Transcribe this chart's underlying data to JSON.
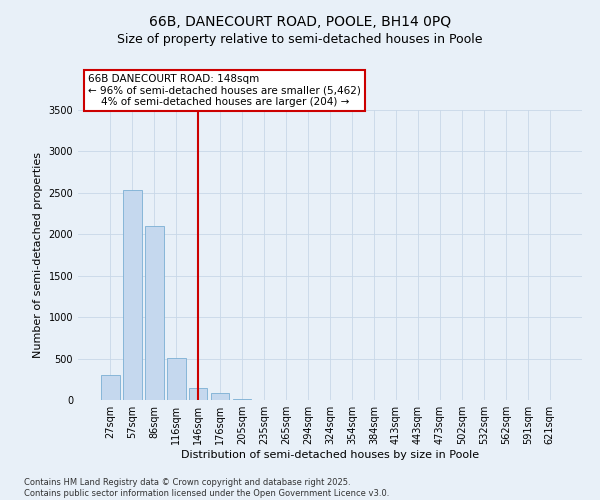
{
  "title_line1": "66B, DANECOURT ROAD, POOLE, BH14 0PQ",
  "title_line2": "Size of property relative to semi-detached houses in Poole",
  "xlabel": "Distribution of semi-detached houses by size in Poole",
  "ylabel": "Number of semi-detached properties",
  "categories": [
    "27sqm",
    "57sqm",
    "86sqm",
    "116sqm",
    "146sqm",
    "176sqm",
    "205sqm",
    "235sqm",
    "265sqm",
    "294sqm",
    "324sqm",
    "354sqm",
    "384sqm",
    "413sqm",
    "443sqm",
    "473sqm",
    "502sqm",
    "532sqm",
    "562sqm",
    "591sqm",
    "621sqm"
  ],
  "values": [
    300,
    2530,
    2100,
    510,
    150,
    80,
    10,
    0,
    0,
    0,
    0,
    0,
    0,
    0,
    0,
    0,
    0,
    0,
    0,
    0,
    0
  ],
  "bar_color": "#c5d8ee",
  "bar_edge_color": "#7bafd4",
  "vline_x": 4.0,
  "vline_color": "#cc0000",
  "annotation_text": "66B DANECOURT ROAD: 148sqm\n← 96% of semi-detached houses are smaller (5,462)\n    4% of semi-detached houses are larger (204) →",
  "annotation_box_edgecolor": "#cc0000",
  "annotation_face_color": "white",
  "ylim": [
    0,
    3500
  ],
  "yticks": [
    0,
    500,
    1000,
    1500,
    2000,
    2500,
    3000,
    3500
  ],
  "background_color": "#e8f0f8",
  "plot_bg_color": "#e8f0f8",
  "grid_color": "#c8d8e8",
  "footer_text": "Contains HM Land Registry data © Crown copyright and database right 2025.\nContains public sector information licensed under the Open Government Licence v3.0.",
  "title_fontsize": 10,
  "subtitle_fontsize": 9,
  "tick_fontsize": 7,
  "ylabel_fontsize": 8,
  "xlabel_fontsize": 8,
  "annotation_fontsize": 7.5,
  "footer_fontsize": 6
}
